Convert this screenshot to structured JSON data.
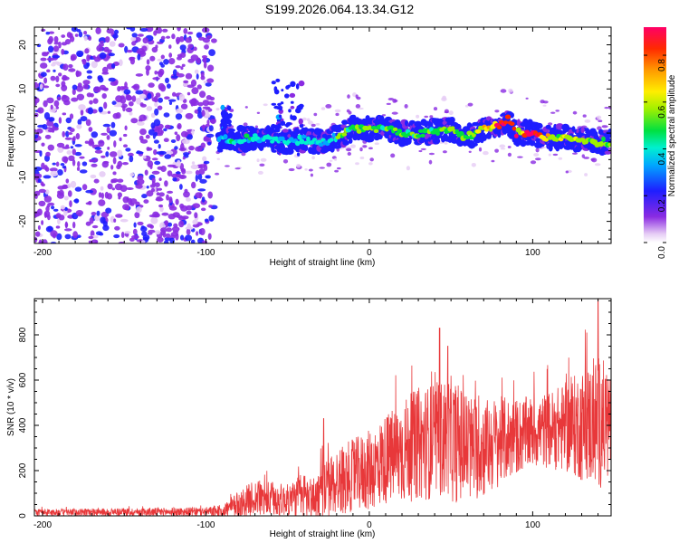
{
  "title": "S199.2026.064.13.34.G12",
  "chart_data": [
    {
      "type": "heatmap",
      "name": "spectrogram",
      "xlabel": "Height of straight line (km)",
      "ylabel": "Frequency (Hz)",
      "xlim": [
        -205,
        148
      ],
      "ylim": [
        -25,
        24
      ],
      "xticks": [
        -200,
        -100,
        0,
        100
      ],
      "yticks": [
        -20,
        -10,
        0,
        10,
        20
      ],
      "colorbar": {
        "label": "Normalized spectral amplitude",
        "range": [
          0,
          0.92
        ],
        "ticks": [
          "0.0",
          "0.2",
          "0.4",
          "0.6",
          "0.8"
        ],
        "tick_values": [
          0,
          0.2,
          0.4,
          0.6,
          0.8
        ]
      },
      "ridge": {
        "x": [
          -90,
          -80,
          -70,
          -60,
          -50,
          -40,
          -30,
          -20,
          -10,
          0,
          10,
          20,
          30,
          40,
          50,
          60,
          70,
          80,
          85,
          90,
          100,
          110,
          120,
          130,
          140,
          148
        ],
        "y": [
          -1.5,
          -1.5,
          -1,
          -1.5,
          -2,
          -1.5,
          -2,
          -1,
          1,
          1,
          1,
          0,
          0,
          0.5,
          1,
          -1,
          1,
          2,
          3,
          0,
          0,
          -1,
          -1,
          -1.5,
          -2,
          -2
        ]
      },
      "noise_region": {
        "x": [
          -205,
          -95
        ],
        "y": [
          -25,
          24
        ]
      },
      "band_features": [
        {
          "x": [
            -60,
            -40
          ],
          "y": [
            -5,
            12
          ]
        },
        {
          "x": [
            -90,
            -85
          ],
          "y": [
            -3,
            6
          ]
        }
      ]
    },
    {
      "type": "line",
      "name": "snr",
      "xlabel": "Height of straight line (km)",
      "ylabel": "SNR (10 * v/v)",
      "xlim": [
        -205,
        148
      ],
      "ylim": [
        0,
        960
      ],
      "xticks": [
        -200,
        -100,
        0,
        100
      ],
      "yticks": [
        0,
        200,
        400,
        600,
        800
      ],
      "color": "#e8383a",
      "envelope": {
        "x": [
          -205,
          -100,
          -90,
          -80,
          -70,
          -60,
          -50,
          -40,
          -35,
          -30,
          -20,
          -10,
          0,
          10,
          20,
          30,
          40,
          50,
          60,
          70,
          80,
          90,
          100,
          110,
          120,
          130,
          140,
          148
        ],
        "mean": [
          15,
          18,
          20,
          50,
          80,
          70,
          70,
          90,
          70,
          100,
          150,
          180,
          200,
          250,
          280,
          320,
          330,
          340,
          300,
          300,
          330,
          350,
          370,
          380,
          390,
          400,
          410,
          420
        ],
        "amp": [
          15,
          20,
          30,
          60,
          80,
          80,
          70,
          110,
          100,
          120,
          150,
          160,
          180,
          200,
          230,
          250,
          260,
          280,
          250,
          220,
          200,
          170,
          160,
          170,
          200,
          250,
          300,
          250
        ]
      },
      "peaks": [
        {
          "x": -28,
          "y": 430
        },
        {
          "x": 43,
          "y": 830
        },
        {
          "x": 48,
          "y": 750
        },
        {
          "x": 140,
          "y": 960
        }
      ]
    }
  ]
}
